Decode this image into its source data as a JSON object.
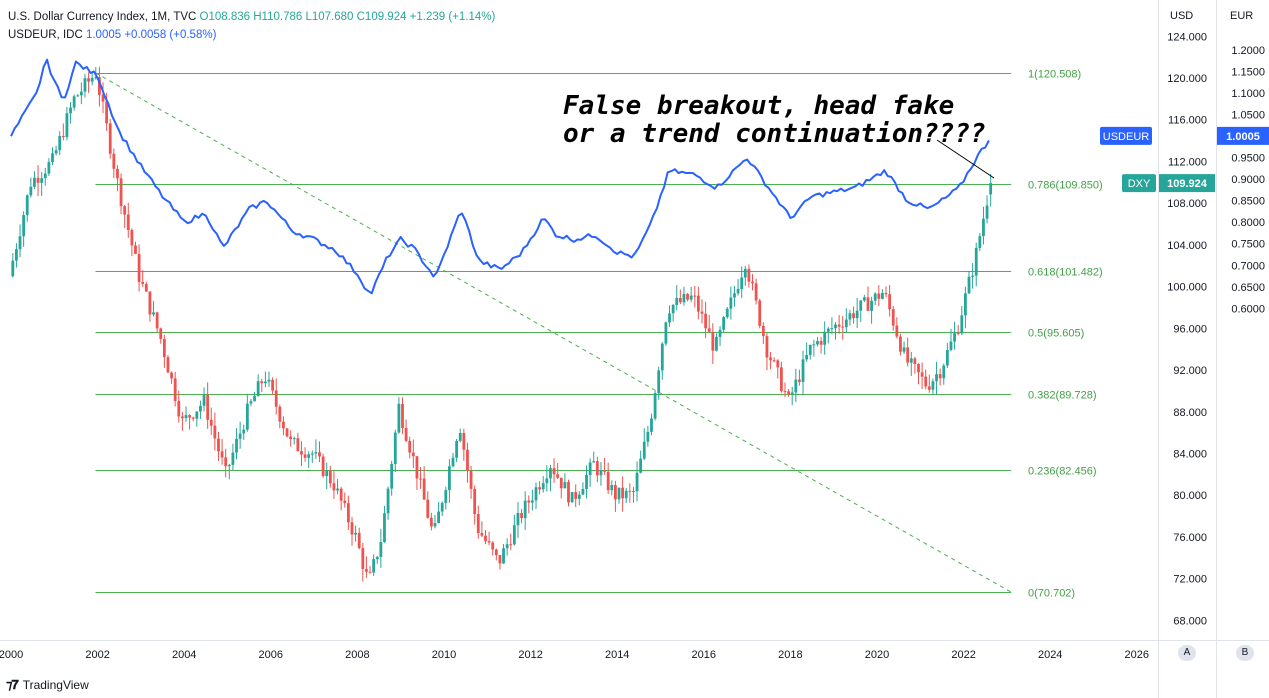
{
  "legend": {
    "dxy_title": "U.S. Dollar Currency Index, 1M, TVC",
    "dxy_ohlc": "O108.836 H110.786 L107.680 C109.924 +1.239 (+1.14%)",
    "usdeur_title": "USDEUR, IDC",
    "usdeur_values": "1.0005 +0.0058 (+0.58%)"
  },
  "axes": {
    "left_unit": "USD",
    "right_unit": "EUR",
    "btn_a": "A",
    "btn_b": "B"
  },
  "footer": {
    "brand": "TradingView"
  },
  "annotation": {
    "line1": "False breakout, head fake",
    "line2": "or a trend continuation????"
  },
  "colors": {
    "up": "#26a69a",
    "down": "#ef5350",
    "usdeur": "#2962ff",
    "fib": "#4caf50",
    "fib_text": "#43a047",
    "grid": "#f0f3fa"
  },
  "chart_data": {
    "type": "candlestick+line",
    "x_ticks": [
      "2000",
      "2002",
      "2004",
      "2006",
      "2008",
      "2010",
      "2012",
      "2014",
      "2016",
      "2018",
      "2020",
      "2022",
      "2024",
      "2026"
    ],
    "xlim": [
      2000,
      2026.5
    ],
    "usd_axis": {
      "ticks": [
        "68.000",
        "72.000",
        "76.000",
        "80.000",
        "84.000",
        "88.000",
        "92.000",
        "96.000",
        "100.000",
        "104.000",
        "108.000",
        "112.000",
        "116.000",
        "120.000",
        "124.000"
      ],
      "ylim": [
        66,
        126
      ]
    },
    "eur_axis": {
      "ticks": [
        "0.6000",
        "0.6500",
        "0.7000",
        "0.7500",
        "0.8000",
        "0.8500",
        "0.9000",
        "0.9500",
        "1.0000",
        "1.0500",
        "1.1000",
        "1.1500",
        "1.2000"
      ]
    },
    "fib_levels": [
      {
        "label": "1(120.508)",
        "value": 120.508
      },
      {
        "label": "0.786(109.850)",
        "value": 109.85
      },
      {
        "label": "0.618(101.482)",
        "value": 101.482
      },
      {
        "label": "0.5(95.605)",
        "value": 95.605
      },
      {
        "label": "0.382(89.728)",
        "value": 89.728
      },
      {
        "label": "0.236(82.456)",
        "value": 82.456
      },
      {
        "label": "0(70.702)",
        "value": 70.702
      }
    ],
    "fib_range": {
      "x_start": 2001.95,
      "x_end": 2023.1
    },
    "trend_line": {
      "from": [
        2001.95,
        120.5
      ],
      "to": [
        2023.1,
        70.7
      ]
    },
    "dxy_last": {
      "label": "DXY",
      "value": "109.924"
    },
    "usdeur_last": {
      "label": "USDEUR",
      "value": "1.0005"
    },
    "dxy_anchors": [
      [
        2000.0,
        101.0
      ],
      [
        2000.5,
        110.0
      ],
      [
        2001.0,
        112.0
      ],
      [
        2001.5,
        118.0
      ],
      [
        2002.0,
        120.5
      ],
      [
        2002.5,
        110.0
      ],
      [
        2003.0,
        101.0
      ],
      [
        2003.5,
        95.0
      ],
      [
        2004.0,
        87.0
      ],
      [
        2004.5,
        89.0
      ],
      [
        2005.0,
        82.0
      ],
      [
        2005.5,
        88.0
      ],
      [
        2005.9,
        91.5
      ],
      [
        2006.5,
        85.0
      ],
      [
        2007.0,
        84.0
      ],
      [
        2007.5,
        81.0
      ],
      [
        2008.0,
        76.0
      ],
      [
        2008.3,
        71.5
      ],
      [
        2008.6,
        76.0
      ],
      [
        2009.0,
        88.5
      ],
      [
        2009.3,
        84.0
      ],
      [
        2009.8,
        76.0
      ],
      [
        2010.4,
        87.0
      ],
      [
        2010.8,
        77.0
      ],
      [
        2011.3,
        73.5
      ],
      [
        2011.8,
        78.0
      ],
      [
        2012.5,
        83.0
      ],
      [
        2013.0,
        79.5
      ],
      [
        2013.5,
        83.0
      ],
      [
        2014.0,
        80.0
      ],
      [
        2014.4,
        80.0
      ],
      [
        2014.8,
        87.0
      ],
      [
        2015.2,
        98.0
      ],
      [
        2015.8,
        99.0
      ],
      [
        2016.3,
        94.0
      ],
      [
        2016.8,
        100.0
      ],
      [
        2017.0,
        102.5
      ],
      [
        2017.5,
        94.0
      ],
      [
        2018.0,
        89.0
      ],
      [
        2018.5,
        94.0
      ],
      [
        2019.0,
        96.0
      ],
      [
        2019.5,
        97.5
      ],
      [
        2020.2,
        99.5
      ],
      [
        2020.7,
        93.0
      ],
      [
        2021.2,
        90.5
      ],
      [
        2021.5,
        92.0
      ],
      [
        2021.9,
        96.0
      ],
      [
        2022.3,
        102.5
      ],
      [
        2022.66,
        109.924
      ]
    ],
    "usdeur_anchors": [
      [
        2000.0,
        1.0
      ],
      [
        2000.6,
        1.1
      ],
      [
        2000.8,
        1.18
      ],
      [
        2001.2,
        1.08
      ],
      [
        2001.5,
        1.17
      ],
      [
        2002.0,
        1.14
      ],
      [
        2002.5,
        1.01
      ],
      [
        2003.0,
        0.93
      ],
      [
        2003.5,
        0.86
      ],
      [
        2004.0,
        0.8
      ],
      [
        2004.5,
        0.82
      ],
      [
        2004.9,
        0.74
      ],
      [
        2005.5,
        0.83
      ],
      [
        2005.9,
        0.85
      ],
      [
        2006.5,
        0.78
      ],
      [
        2007.0,
        0.76
      ],
      [
        2007.5,
        0.735
      ],
      [
        2008.0,
        0.68
      ],
      [
        2008.3,
        0.63
      ],
      [
        2008.7,
        0.72
      ],
      [
        2009.0,
        0.76
      ],
      [
        2009.3,
        0.74
      ],
      [
        2009.8,
        0.67
      ],
      [
        2010.4,
        0.83
      ],
      [
        2010.8,
        0.71
      ],
      [
        2011.3,
        0.69
      ],
      [
        2011.8,
        0.73
      ],
      [
        2012.3,
        0.81
      ],
      [
        2012.6,
        0.77
      ],
      [
        2013.0,
        0.76
      ],
      [
        2013.5,
        0.77
      ],
      [
        2014.0,
        0.73
      ],
      [
        2014.4,
        0.72
      ],
      [
        2014.8,
        0.8
      ],
      [
        2015.2,
        0.92
      ],
      [
        2015.8,
        0.91
      ],
      [
        2016.3,
        0.88
      ],
      [
        2016.8,
        0.93
      ],
      [
        2017.0,
        0.95
      ],
      [
        2017.5,
        0.88
      ],
      [
        2018.0,
        0.81
      ],
      [
        2018.5,
        0.86
      ],
      [
        2019.0,
        0.87
      ],
      [
        2019.5,
        0.88
      ],
      [
        2020.2,
        0.92
      ],
      [
        2020.7,
        0.85
      ],
      [
        2021.2,
        0.83
      ],
      [
        2021.5,
        0.85
      ],
      [
        2021.9,
        0.88
      ],
      [
        2022.3,
        0.95
      ],
      [
        2022.66,
        1.0005
      ]
    ]
  }
}
